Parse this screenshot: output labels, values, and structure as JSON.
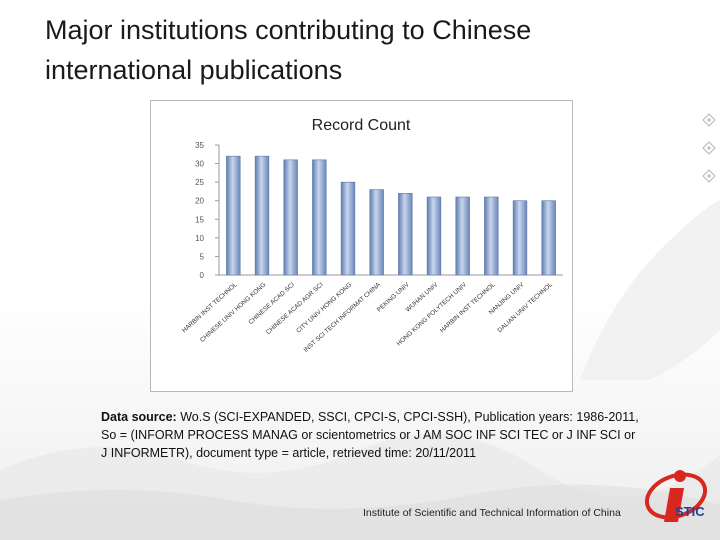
{
  "slide": {
    "title_line1": "Major institutions contributing to Chinese",
    "title_line2": "international publications",
    "source_label": "Data source:",
    "source_text": " Wo.S (SCI-EXPANDED, SSCI, CPCI-S, CPCI-SSH), Publication years: 1986-2011, So = (INFORM PROCESS MANAG or scientometrics or J AM SOC INF SCI TEC or J INF SCI or J INFORMETR), document type = article, retrieved time: 20/11/2011",
    "footer": "Institute of Scientific and Technical Information of China",
    "logo_text": "STIC"
  },
  "colors": {
    "bar_fill": "#7f99c6",
    "bar_edge": "#5c76a6",
    "logo_red": "#d7281f",
    "logo_blue": "#1f3f99"
  },
  "chart_data": {
    "type": "bar",
    "title": "Record Count",
    "categories": [
      "HARBIN INST TECHNOL",
      "CHINESE UNIV HONG KONG",
      "CHINESE ACAD SCI",
      "CHINESE ACAD AGR SCI",
      "CITY UNIV HONG KONG",
      "INST SCI TECH INFORMAT CHINA",
      "PEKING UNIV",
      "WUHAN UNIV",
      "HONG KONG POLYTECH UNIV",
      "HARBIN INST TECHNOL",
      "NANJING UNIV",
      "DALIAN UNIV TECHNOL"
    ],
    "values": [
      32,
      32,
      31,
      31,
      25,
      23,
      22,
      21,
      21,
      21,
      20,
      20
    ],
    "ylim": [
      0,
      35
    ],
    "yticks": [
      0,
      5,
      10,
      15,
      20,
      25,
      30,
      35
    ],
    "grid": false,
    "legend": "none"
  }
}
